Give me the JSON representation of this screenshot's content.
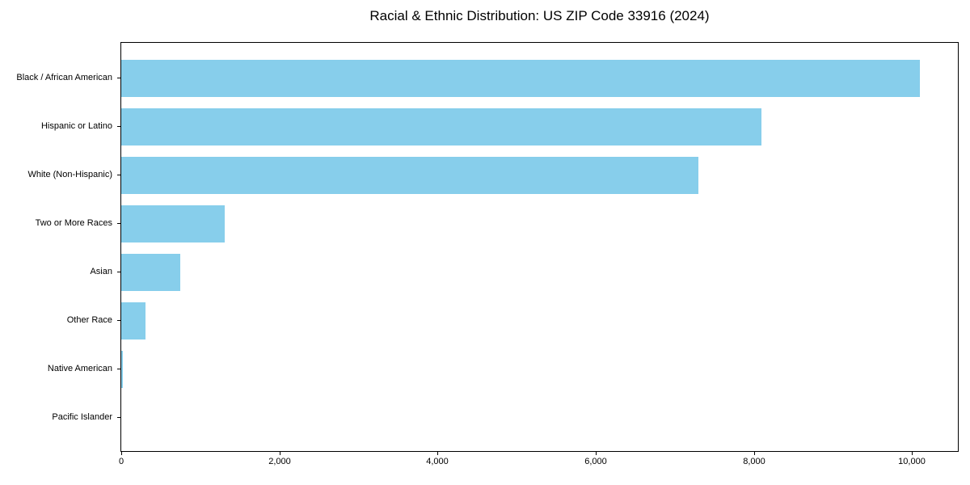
{
  "title": "Racial & Ethnic Distribution: US ZIP Code 33916 (2024)",
  "chart_data": {
    "type": "bar",
    "orientation": "horizontal",
    "title": "Racial & Ethnic Distribution: US ZIP Code 33916 (2024)",
    "xlabel": "",
    "ylabel": "",
    "categories": [
      "Black / African American",
      "Hispanic or Latino",
      "White (Non-Hispanic)",
      "Two or More Races",
      "Asian",
      "Other Race",
      "Native American",
      "Pacific Islander"
    ],
    "values": [
      10100,
      8100,
      7300,
      1310,
      750,
      310,
      20,
      0
    ],
    "xlim": [
      0,
      10580
    ],
    "x_ticks": [
      0,
      2000,
      4000,
      6000,
      8000,
      10000
    ],
    "x_tick_labels": [
      "0",
      "2,000",
      "4,000",
      "6,000",
      "8,000",
      "10,000"
    ],
    "grid": false,
    "legend": null,
    "bar_color": "#87CEEB",
    "spine_color": "#000000",
    "text_color": "#000000",
    "background_color": "#ffffff"
  }
}
